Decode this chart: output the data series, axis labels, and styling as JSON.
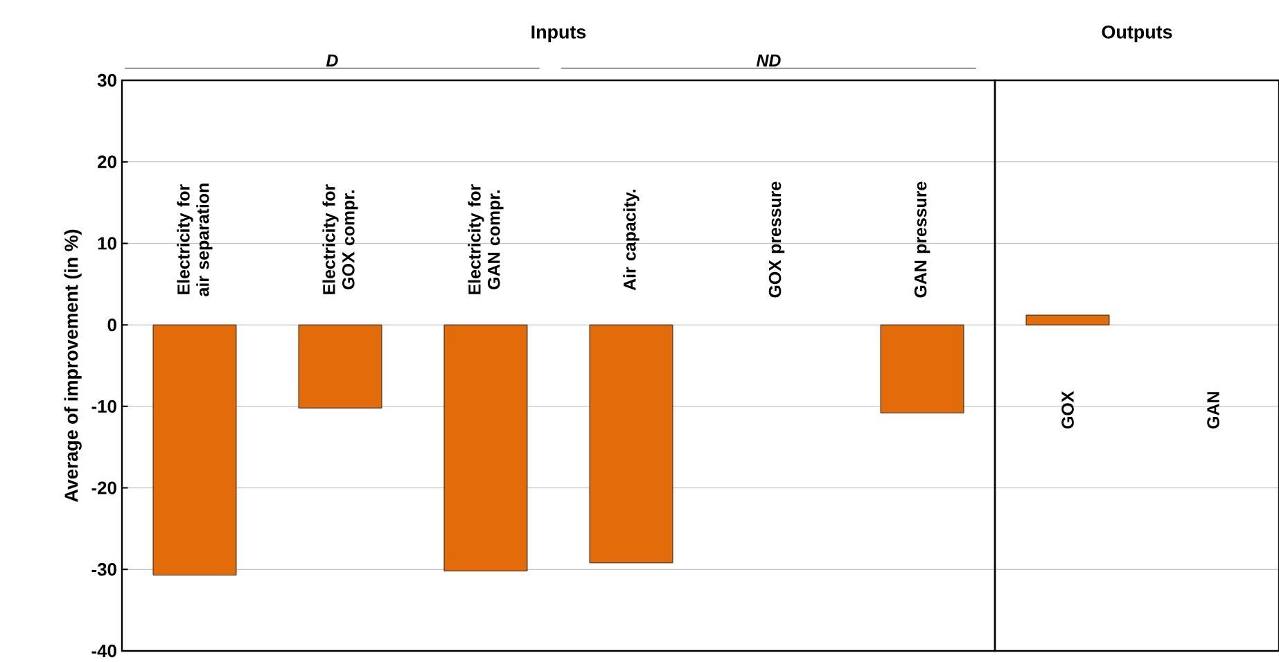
{
  "chart_data": [
    {
      "type": "bar",
      "title": "Inputs",
      "ylabel": "Average of improvement (in %)",
      "categories": [
        "Electricity for air separation",
        "Electricity for GOX compr.",
        "Electricity for GAN compr.",
        "Air capacity.",
        "GOX pressure",
        "GAN pressure"
      ],
      "values": [
        -30.7,
        -10.2,
        -30.2,
        -29.2,
        null,
        -10.8
      ],
      "color": "#e36c0a",
      "ylim": [
        -40,
        30
      ],
      "yticks": [
        -40,
        -30,
        -20,
        -10,
        0,
        10,
        20,
        30
      ],
      "grid": "y",
      "annotations": [
        "D",
        "ND"
      ]
    },
    {
      "type": "bar",
      "title": "Outputs",
      "categories": [
        "GOX",
        "GAN"
      ],
      "values": [
        1.2,
        null
      ],
      "color": "#e36c0a",
      "ylim": [
        -40,
        30
      ],
      "yticks": [
        -40,
        -30,
        -20,
        -10,
        0,
        10,
        20,
        30
      ],
      "grid": "y",
      "tick_labels": "x"
    }
  ]
}
